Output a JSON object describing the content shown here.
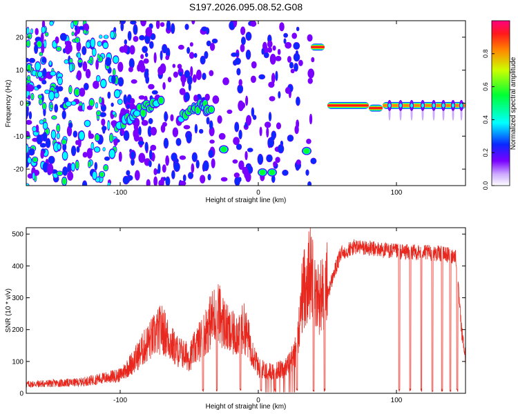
{
  "title": "S197.2026.095.08.52.G08",
  "chart_data": [
    {
      "type": "heatmap",
      "xlabel": "Height of straight line (km)",
      "ylabel": "Frequency (Hz)",
      "xlim": [
        -168,
        150
      ],
      "ylim": [
        -25,
        25
      ],
      "xticks": [
        -100,
        0,
        100
      ],
      "xtick_labels": [
        "-100",
        "0",
        "100"
      ],
      "yticks": [
        -20,
        -10,
        0,
        10,
        20
      ],
      "ytick_labels": [
        "-20",
        "-10",
        "0",
        "10",
        "20"
      ],
      "colorbar": {
        "label": "Normalized spectral amplitude",
        "range": [
          0,
          1
        ],
        "ticks": [
          0.0,
          0.2,
          0.4,
          0.6,
          0.8
        ],
        "tick_labels": [
          "0.0",
          "0.2",
          "0.4",
          "0.6",
          "0.8"
        ]
      },
      "features": [
        {
          "name": "scattered-noise",
          "x": [
            -168,
            40
          ],
          "y": [
            -25,
            25
          ],
          "amplitude": 0.1
        },
        {
          "name": "rising-band",
          "points": [
            [
              -100,
              -6
            ],
            [
              -90,
              -3
            ],
            [
              -80,
              -1
            ],
            [
              -70,
              0
            ]
          ],
          "amplitude": 0.45
        },
        {
          "name": "cluster-1",
          "points": [
            [
              -55,
              -4
            ],
            [
              -45,
              -1
            ],
            [
              -40,
              -1
            ],
            [
              -33,
              -2
            ]
          ],
          "amplitude": 0.5
        },
        {
          "name": "blob-1",
          "x": -25,
          "y": -14,
          "amplitude": 0.5
        },
        {
          "name": "blob-2",
          "x": 3,
          "y": -21,
          "amplitude": 0.45
        },
        {
          "name": "blob-3",
          "x": 10,
          "y": -21,
          "amplitude": 0.45
        },
        {
          "name": "blob-4",
          "x": 35,
          "y": -14.5,
          "amplitude": 0.5
        },
        {
          "name": "line-17hz",
          "x": [
            38,
            48
          ],
          "y": 17,
          "amplitude": 0.9
        },
        {
          "name": "line-near-zero",
          "x": [
            50,
            80
          ],
          "y": -0.7,
          "amplitude": 0.9
        },
        {
          "name": "line-dip",
          "x": [
            80,
            90
          ],
          "y": -1.5,
          "amplitude": 0.85
        },
        {
          "name": "line-tail",
          "x": [
            90,
            150
          ],
          "y": -0.7,
          "amplitude": 0.7
        }
      ]
    },
    {
      "type": "line",
      "xlabel": "Height of straight line (km)",
      "ylabel": "SNR (10 * v/v)",
      "xlim": [
        -168,
        150
      ],
      "ylim": [
        0,
        520
      ],
      "xticks": [
        -100,
        0,
        100
      ],
      "xtick_labels": [
        "-100",
        "0",
        "100"
      ],
      "yticks": [
        0,
        100,
        200,
        300,
        400,
        500
      ],
      "ytick_labels": [
        "0",
        "100",
        "200",
        "300",
        "400",
        "500"
      ],
      "series": [
        {
          "name": "SNR",
          "color": "#e8281e",
          "envelope": [
            [
              -168,
              25
            ],
            [
              -130,
              30
            ],
            [
              -100,
              50
            ],
            [
              -90,
              90
            ],
            [
              -80,
              140
            ],
            [
              -70,
              180
            ],
            [
              -60,
              120
            ],
            [
              -50,
              100
            ],
            [
              -40,
              160
            ],
            [
              -30,
              230
            ],
            [
              -20,
              160
            ],
            [
              -10,
              180
            ],
            [
              0,
              70
            ],
            [
              10,
              60
            ],
            [
              20,
              70
            ],
            [
              28,
              120
            ],
            [
              32,
              280
            ],
            [
              38,
              340
            ],
            [
              42,
              260
            ],
            [
              48,
              280
            ],
            [
              55,
              380
            ],
            [
              60,
              440
            ],
            [
              70,
              460
            ],
            [
              100,
              445
            ],
            [
              130,
              440
            ],
            [
              143,
              430
            ],
            [
              147,
              200
            ],
            [
              150,
              110
            ]
          ],
          "dropouts": [
            -40,
            -30,
            -13,
            2,
            12,
            28,
            40,
            48,
            102,
            110,
            118,
            126,
            133,
            139,
            144
          ]
        }
      ]
    }
  ],
  "colors": {
    "line": "#e8281e",
    "axis": "#000000",
    "background": "#ffffff"
  }
}
